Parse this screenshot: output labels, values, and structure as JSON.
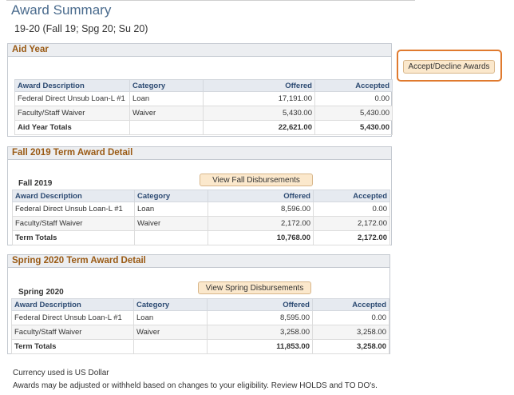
{
  "page": {
    "title": "Award Summary",
    "subtitle": "19-20 (Fall 19; Spg 20; Su 20)"
  },
  "accept_decline_button": "Accept/Decline Awards",
  "aid_year": {
    "heading": "Aid Year",
    "headers": [
      "Award Description",
      "Category",
      "Offered",
      "Accepted"
    ],
    "rows": [
      {
        "desc": "Federal Direct Unsub Loan-L #1",
        "category": "Loan",
        "offered": "17,191.00",
        "accepted": "0.00"
      },
      {
        "desc": "Faculty/Staff Waiver",
        "category": "Waiver",
        "offered": "5,430.00",
        "accepted": "5,430.00"
      }
    ],
    "totals": {
      "label": "Aid Year Totals",
      "offered": "22,621.00",
      "accepted": "5,430.00"
    }
  },
  "fall": {
    "heading": "Fall 2019 Term Award Detail",
    "term_label": "Fall 2019",
    "button": "View Fall Disbursements",
    "headers": [
      "Award Description",
      "Category",
      "Offered",
      "Accepted"
    ],
    "rows": [
      {
        "desc": "Federal Direct Unsub Loan-L #1",
        "category": "Loan",
        "offered": "8,596.00",
        "accepted": "0.00"
      },
      {
        "desc": "Faculty/Staff Waiver",
        "category": "Waiver",
        "offered": "2,172.00",
        "accepted": "2,172.00"
      }
    ],
    "totals": {
      "label": "Term Totals",
      "offered": "10,768.00",
      "accepted": "2,172.00"
    }
  },
  "spring": {
    "heading": "Spring 2020 Term Award Detail",
    "term_label": "Spring 2020",
    "button": "View Spring Disbursements",
    "headers": [
      "Award Description",
      "Category",
      "Offered",
      "Accepted"
    ],
    "rows": [
      {
        "desc": "Federal Direct Unsub Loan-L #1",
        "category": "Loan",
        "offered": "8,595.00",
        "accepted": "0.00"
      },
      {
        "desc": "Faculty/Staff Waiver",
        "category": "Waiver",
        "offered": "3,258.00",
        "accepted": "3,258.00"
      }
    ],
    "totals": {
      "label": "Term Totals",
      "offered": "11,853.00",
      "accepted": "3,258.00"
    }
  },
  "notes": {
    "currency": "Currency used is US Dollar",
    "disclaimer": "Awards may be adjusted or withheld based on changes to your eligibility. Review HOLDS and TO DO's."
  },
  "colors": {
    "title": "#4a6b8d",
    "section_heading": "#9a5a14",
    "button_bg": "#fbe8cc",
    "highlight": "#e07a2e"
  }
}
